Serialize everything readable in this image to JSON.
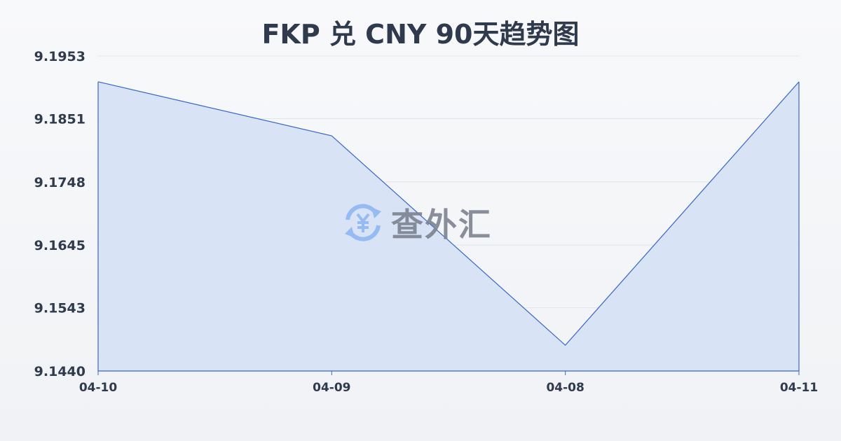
{
  "chart_data": {
    "type": "area",
    "title": "FKP 兑 CNY 90天趋势图",
    "categories": [
      "04-10",
      "04-09",
      "04-08",
      "04-11"
    ],
    "values": [
      9.1911,
      9.1823,
      9.1482,
      9.1911
    ],
    "yticks": [
      "9.1953",
      "9.1851",
      "9.1748",
      "9.1645",
      "9.1543",
      "9.1440"
    ],
    "ylim": [
      9.144,
      9.1953
    ],
    "grid": true,
    "line_color": "#3a66c7",
    "fill_color": "#d6e1f5"
  },
  "watermark": {
    "text": "查外汇",
    "icon": "yen-exchange-icon",
    "icon_color": "#8fb6f2"
  }
}
